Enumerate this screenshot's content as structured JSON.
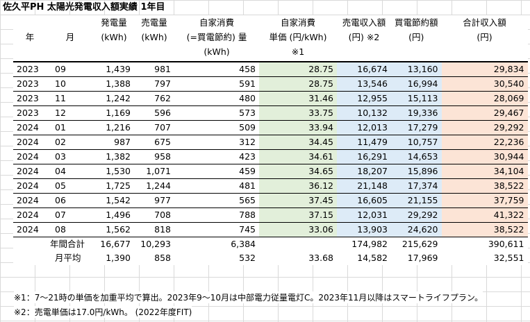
{
  "title": "佐久平PH 太陽光発電収入額実績 1年目",
  "headers": {
    "year": "年",
    "month": "月",
    "generation": [
      "発電量",
      "(kWh)"
    ],
    "sold": [
      "売電量",
      "(kWh)"
    ],
    "self_use": [
      "自家消費",
      "(=買電節約) 量",
      "(kWh)"
    ],
    "unit_price": [
      "自家消費",
      "単価 (円/kWh)",
      "※1"
    ],
    "sell_revenue": [
      "売電収入額",
      "(円) ※2"
    ],
    "saving": [
      "買電節約額",
      "(円)"
    ],
    "total": [
      "合計収入額",
      "(円)"
    ]
  },
  "rows": [
    {
      "year": "2023",
      "month": "09",
      "gen": "1,439",
      "sold": "981",
      "self": "458",
      "unit": "28.75",
      "rev": "16,674",
      "save": "13,160",
      "total": "29,834"
    },
    {
      "year": "2023",
      "month": "10",
      "gen": "1,388",
      "sold": "797",
      "self": "591",
      "unit": "28.75",
      "rev": "13,546",
      "save": "16,994",
      "total": "30,540"
    },
    {
      "year": "2023",
      "month": "11",
      "gen": "1,242",
      "sold": "762",
      "self": "480",
      "unit": "31.46",
      "rev": "12,955",
      "save": "15,113",
      "total": "28,069"
    },
    {
      "year": "2023",
      "month": "12",
      "gen": "1,169",
      "sold": "596",
      "self": "573",
      "unit": "33.75",
      "rev": "10,132",
      "save": "19,336",
      "total": "29,467"
    },
    {
      "year": "2024",
      "month": "01",
      "gen": "1,216",
      "sold": "707",
      "self": "509",
      "unit": "33.94",
      "rev": "12,013",
      "save": "17,279",
      "total": "29,292"
    },
    {
      "year": "2024",
      "month": "02",
      "gen": "987",
      "sold": "675",
      "self": "312",
      "unit": "34.45",
      "rev": "11,479",
      "save": "10,757",
      "total": "22,236"
    },
    {
      "year": "2024",
      "month": "03",
      "gen": "1,382",
      "sold": "958",
      "self": "423",
      "unit": "34.61",
      "rev": "16,291",
      "save": "14,653",
      "total": "30,944"
    },
    {
      "year": "2024",
      "month": "04",
      "gen": "1,530",
      "sold": "1,071",
      "self": "459",
      "unit": "34.65",
      "rev": "18,207",
      "save": "15,896",
      "total": "34,104"
    },
    {
      "year": "2024",
      "month": "05",
      "gen": "1,725",
      "sold": "1,244",
      "self": "481",
      "unit": "36.12",
      "rev": "21,148",
      "save": "17,374",
      "total": "38,522"
    },
    {
      "year": "2024",
      "month": "06",
      "gen": "1,542",
      "sold": "977",
      "self": "565",
      "unit": "37.45",
      "rev": "16,605",
      "save": "21,155",
      "total": "37,759"
    },
    {
      "year": "2024",
      "month": "07",
      "gen": "1,496",
      "sold": "708",
      "self": "788",
      "unit": "37.15",
      "rev": "12,031",
      "save": "29,292",
      "total": "41,322"
    },
    {
      "year": "2024",
      "month": "08",
      "gen": "1,562",
      "sold": "818",
      "self": "745",
      "unit": "33.06",
      "rev": "13,903",
      "save": "24,620",
      "total": "38,522"
    }
  ],
  "annual": {
    "label": "年間合計",
    "gen": "16,677",
    "sold": "10,293",
    "self": "6,384",
    "unit": "",
    "rev": "174,982",
    "save": "215,629",
    "total": "390,611"
  },
  "average": {
    "label": "月平均",
    "gen": "1,390",
    "sold": "858",
    "self": "532",
    "unit": "33.68",
    "rev": "14,582",
    "save": "17,969",
    "total": "32,551"
  },
  "notes": [
    "※1：7～21時の単価を加重平均で算出。2023年9～10月は中部電力従量電灯C。2023年11月以降はスマートライフプラン。",
    "※2：売電単価は17.0円/kWh。 (2022年度FIT)"
  ],
  "colors": {
    "unit_price_fill": "#e2efda",
    "sell_revenue_fill": "#ddebf7",
    "saving_fill": "#ddebf7",
    "total_fill": "#fce4d6"
  }
}
